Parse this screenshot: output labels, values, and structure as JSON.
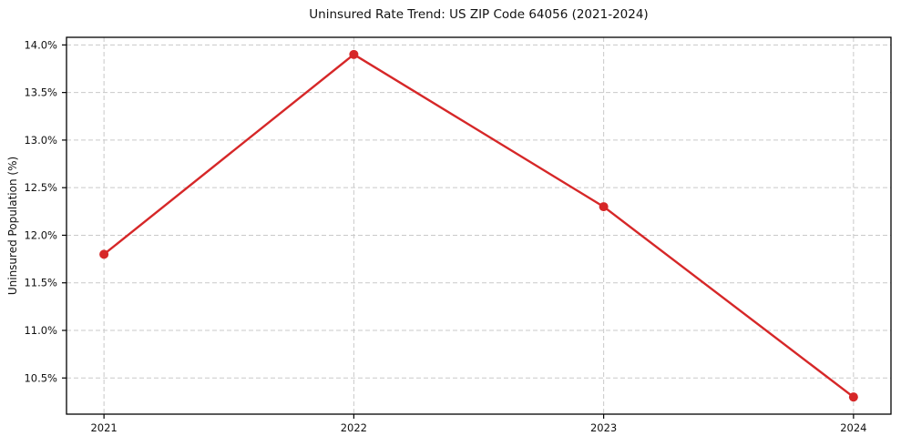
{
  "chart_data": {
    "type": "line",
    "title": "Uninsured Rate Trend: US ZIP Code 64056 (2021-2024)",
    "xlabel": "",
    "ylabel": "Uninsured Population (%)",
    "x": [
      2021,
      2022,
      2023,
      2024
    ],
    "values": [
      11.8,
      13.9,
      12.3,
      10.3
    ],
    "xlim": [
      2020.85,
      2024.15
    ],
    "ylim": [
      10.12,
      14.08
    ],
    "x_ticks": {
      "values": [
        2021,
        2022,
        2023,
        2024
      ],
      "labels": [
        "2021",
        "2022",
        "2023",
        "2024"
      ]
    },
    "y_ticks": {
      "values": [
        10.5,
        11.0,
        11.5,
        12.0,
        12.5,
        13.0,
        13.5,
        14.0
      ],
      "labels": [
        "10.5%",
        "11.0%",
        "11.5%",
        "12.0%",
        "12.5%",
        "13.0%",
        "13.5%",
        "14.0%"
      ]
    },
    "grid": true,
    "grid_style": "dashed",
    "legend": false,
    "colors": {
      "line": "#d62728",
      "marker": "#d62728",
      "grid": "#c9c9c9",
      "spine": "#000000",
      "text": "#111111",
      "background": "#ffffff"
    }
  }
}
